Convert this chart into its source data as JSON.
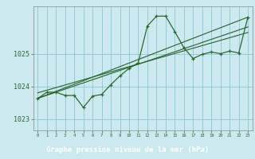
{
  "title": "Graphe pression niveau de la mer (hPa)",
  "background_color": "#cce9f0",
  "grid_color": "#88c8d8",
  "line_color": "#2d6a2d",
  "xlabel_bg": "#2d6a2d",
  "xlabel_fg": "#ffffff",
  "xlim": [
    -0.5,
    23.5
  ],
  "ylim": [
    1022.65,
    1026.45
  ],
  "yticks": [
    1023,
    1024,
    1025
  ],
  "xticks": [
    0,
    1,
    2,
    3,
    4,
    5,
    6,
    7,
    8,
    9,
    10,
    11,
    12,
    13,
    14,
    15,
    16,
    17,
    18,
    19,
    20,
    21,
    22,
    23
  ],
  "main_x": [
    0,
    1,
    2,
    3,
    4,
    5,
    6,
    7,
    8,
    9,
    10,
    11,
    12,
    13,
    14,
    15,
    16,
    17,
    18,
    19,
    20,
    21,
    22,
    23
  ],
  "main_y": [
    1023.63,
    1023.82,
    1023.82,
    1023.72,
    1023.72,
    1023.35,
    1023.7,
    1023.75,
    1024.05,
    1024.32,
    1024.55,
    1024.72,
    1025.85,
    1026.15,
    1026.15,
    1025.68,
    1025.18,
    1024.85,
    1024.98,
    1025.05,
    1025.0,
    1025.08,
    1025.02,
    1026.12
  ],
  "trend1_x": [
    0,
    23
  ],
  "trend1_y": [
    1023.63,
    1026.12
  ],
  "trend2_x": [
    0,
    23
  ],
  "trend2_y": [
    1023.63,
    1025.82
  ],
  "trend3_x": [
    0,
    23
  ],
  "trend3_y": [
    1023.8,
    1025.65
  ]
}
